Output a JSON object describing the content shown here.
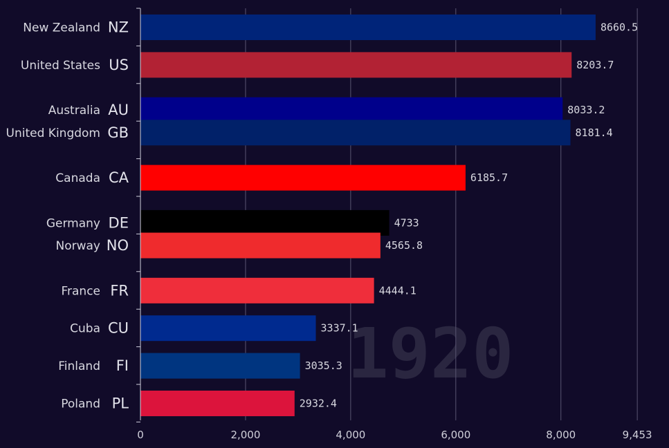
{
  "chart_data": {
    "type": "bar",
    "orientation": "horizontal",
    "title": "",
    "year_label": "1920",
    "xlim": [
      0,
      9453
    ],
    "x_ticks": [
      0,
      2000,
      4000,
      6000,
      8000,
      9453
    ],
    "x_tick_labels": [
      "0",
      "2,000",
      "4,000",
      "6,000",
      "8,000",
      "9,453"
    ],
    "grid": true,
    "bars": [
      {
        "name": "New Zealand",
        "code": "NZ",
        "value": 8660.5,
        "value_label": "8660.5",
        "color": "#002479",
        "rank": 0
      },
      {
        "name": "United States",
        "code": "US",
        "value": 8203.7,
        "value_label": "8203.7",
        "color": "#b22234",
        "rank": 1
      },
      {
        "name": "Australia",
        "code": "AU",
        "value": 8033.2,
        "value_label": "8033.2",
        "color": "#00008b",
        "rank": 2.2
      },
      {
        "name": "United Kingdom",
        "code": "GB",
        "value": 8181.4,
        "value_label": "8181.4",
        "color": "#012169",
        "rank": 2.8
      },
      {
        "name": "Canada",
        "code": "CA",
        "value": 6185.7,
        "value_label": "6185.7",
        "color": "#ff0000",
        "rank": 4
      },
      {
        "name": "Germany",
        "code": "DE",
        "value": 4733,
        "value_label": "4733",
        "color": "#000000",
        "rank": 5.2
      },
      {
        "name": "Norway",
        "code": "NO",
        "value": 4565.8,
        "value_label": "4565.8",
        "color": "#ef2b2d",
        "rank": 5.8
      },
      {
        "name": "France",
        "code": "FR",
        "value": 4444.1,
        "value_label": "4444.1",
        "color": "#ef2e3b",
        "rank": 7
      },
      {
        "name": "Cuba",
        "code": "CU",
        "value": 3337.1,
        "value_label": "3337.1",
        "color": "#002a8f",
        "rank": 8
      },
      {
        "name": "Finland",
        "code": "FI",
        "value": 3035.3,
        "value_label": "3035.3",
        "color": "#003580",
        "rank": 9
      },
      {
        "name": "Poland",
        "code": "PL",
        "value": 2932.4,
        "value_label": "2932.4",
        "color": "#dc143c",
        "rank": 10
      }
    ]
  }
}
